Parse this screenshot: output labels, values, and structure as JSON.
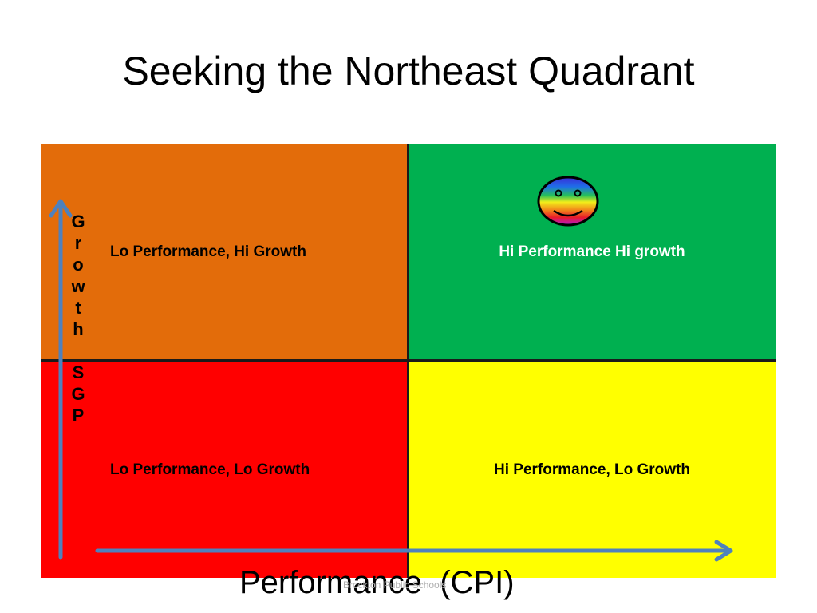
{
  "slide": {
    "title": "Seeking the Northeast Quadrant",
    "footer": "Brockton Public Schools"
  },
  "quadrants": {
    "nw": {
      "label": "Lo Performance, Hi Growth",
      "color": "#e36c0a",
      "text_color": "#000000"
    },
    "ne": {
      "label": "Hi Performance Hi growth",
      "color": "#00b050",
      "text_color": "#ffffff"
    },
    "sw": {
      "label": "Lo Performance, Lo Growth",
      "color": "#ff0000",
      "text_color": "#000000"
    },
    "se": {
      "label": "Hi Performance, Lo Growth",
      "color": "#ffff00",
      "text_color": "#000000"
    }
  },
  "axes": {
    "y_label_letters": [
      "G",
      "r",
      "o",
      "w",
      "t",
      "h",
      "",
      "S",
      "G",
      "P"
    ],
    "x_label": "Performance  (CPI)",
    "arrow_color": "#4f81bd"
  },
  "icons": {
    "smiley": "rainbow-smiley-icon"
  }
}
